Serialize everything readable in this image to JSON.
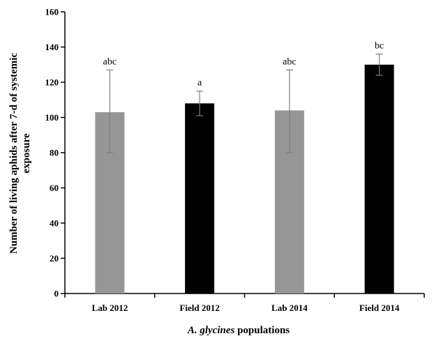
{
  "chart_data": {
    "type": "bar",
    "categories": [
      "Lab 2012",
      "Field 2012",
      "Lab 2014",
      "Field 2014"
    ],
    "values": [
      103,
      108,
      104,
      130
    ],
    "error_low": [
      80,
      101,
      80,
      124
    ],
    "error_high": [
      127,
      115,
      127,
      136
    ],
    "significance_labels": [
      "abc",
      "a",
      "abc",
      "bc"
    ],
    "bar_colors": [
      "#969696",
      "#000000",
      "#969696",
      "#000000"
    ],
    "ylim": [
      0,
      160
    ],
    "yticks": [
      0,
      20,
      40,
      60,
      80,
      100,
      120,
      140,
      160
    ],
    "ylabel_line1": "Number of living aphids after 7-d of systemic",
    "ylabel_line2": "exposure",
    "xlabel_italic": "A. glycines",
    "xlabel_rest": " populations",
    "grid": false
  }
}
